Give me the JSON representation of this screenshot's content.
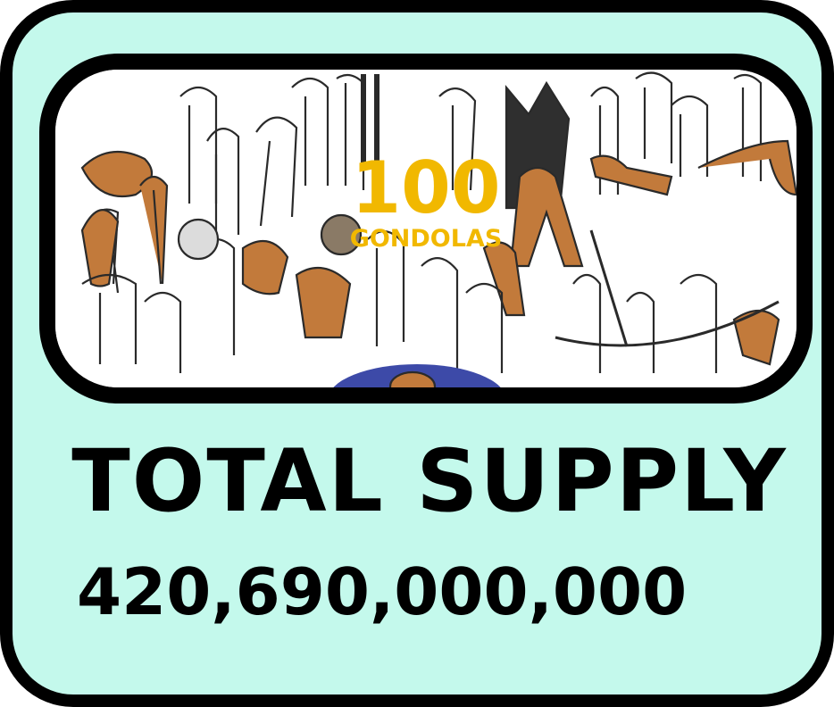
{
  "card": {
    "background_color": "#c4f9ec",
    "border_color": "#000000"
  },
  "banner": {
    "title_number": "100",
    "title_word": "GONDOLAS",
    "title_color": "#f1b800",
    "character_color": "#c27a3b",
    "outline_color": "#2a2a2a"
  },
  "supply": {
    "heading": "TOTAL SUPPLY",
    "value": "420,690,000,000"
  }
}
